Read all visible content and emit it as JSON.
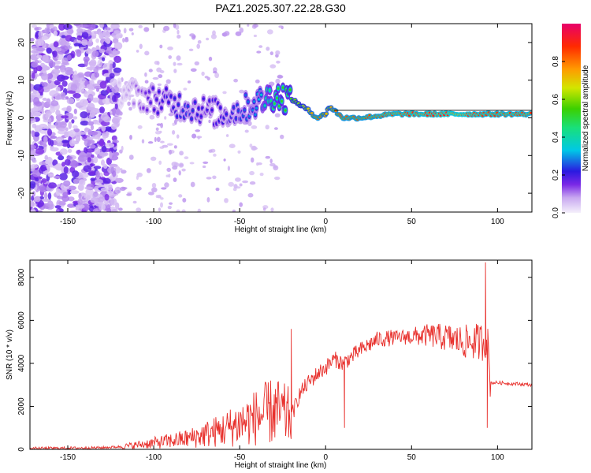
{
  "title": "PAZ1.2025.307.22.28.G30",
  "chart_data": [
    {
      "type": "heatmap",
      "title": "PAZ1.2025.307.22.28.G30",
      "xlabel": "Height of straight line (km)",
      "ylabel": "Frequency (Hz)",
      "xlim": [
        -172,
        120
      ],
      "ylim": [
        -25,
        25
      ],
      "xticks": [
        -150,
        -100,
        -50,
        0,
        50,
        100
      ],
      "yticks": [
        -20,
        -10,
        0,
        10,
        20
      ],
      "colorbar": {
        "label": "Normalized spectral amplitude",
        "range": [
          0,
          1
        ],
        "ticks": [
          "0.0",
          "0.2",
          "0.4",
          "0.6",
          "0.8"
        ]
      },
      "ridge": {
        "description": "dominant frequency track",
        "x": [
          -120,
          -110,
          -100,
          -90,
          -80,
          -70,
          -60,
          -50,
          -40,
          -30,
          -20,
          -10,
          -5,
          0,
          2,
          5,
          10,
          20,
          40,
          60,
          80,
          90,
          100,
          120
        ],
        "freq_hz": [
          7,
          6,
          5,
          4,
          3,
          2,
          1,
          2,
          4,
          6,
          5,
          2,
          0,
          1,
          3,
          2,
          0,
          0,
          1,
          1,
          1,
          1,
          1,
          1
        ],
        "amplitude": [
          0.05,
          0.12,
          0.2,
          0.22,
          0.25,
          0.2,
          0.22,
          0.25,
          0.3,
          0.5,
          0.55,
          0.7,
          0.85,
          0.75,
          0.7,
          0.8,
          0.85,
          0.85,
          0.9,
          0.92,
          0.95,
          0.9,
          0.9,
          0.9
        ]
      }
    },
    {
      "type": "line",
      "xlabel": "Height of straight line (km)",
      "ylabel": "SNR (10 * v/v)",
      "xlim": [
        -172,
        120
      ],
      "ylim": [
        0,
        8800
      ],
      "xticks": [
        -150,
        -100,
        -50,
        0,
        50,
        100
      ],
      "yticks": [
        0,
        2000,
        4000,
        6000,
        8000
      ],
      "series": [
        {
          "name": "SNR",
          "color": "#e8302c",
          "x": [
            -172,
            -150,
            -130,
            -120,
            -110,
            -100,
            -90,
            -80,
            -70,
            -60,
            -50,
            -40,
            -30,
            -20,
            -15,
            -10,
            -5,
            0,
            5,
            10,
            15,
            20,
            30,
            40,
            50,
            60,
            70,
            80,
            90,
            94,
            96,
            100,
            110,
            120
          ],
          "y": [
            50,
            60,
            80,
            120,
            200,
            300,
            400,
            500,
            700,
            900,
            1200,
            1500,
            1800,
            1500,
            2600,
            3100,
            3500,
            3800,
            4200,
            4000,
            4300,
            4600,
            5100,
            5200,
            5250,
            5300,
            5200,
            5000,
            5000,
            5100,
            3100,
            3100,
            3050,
            3000
          ],
          "spikes": [
            {
              "x": -20,
              "y": 5600
            },
            {
              "x": 11,
              "y": 1000
            },
            {
              "x": 93,
              "y": 8700
            },
            {
              "x": 94,
              "y": 1000
            }
          ]
        }
      ]
    }
  ]
}
